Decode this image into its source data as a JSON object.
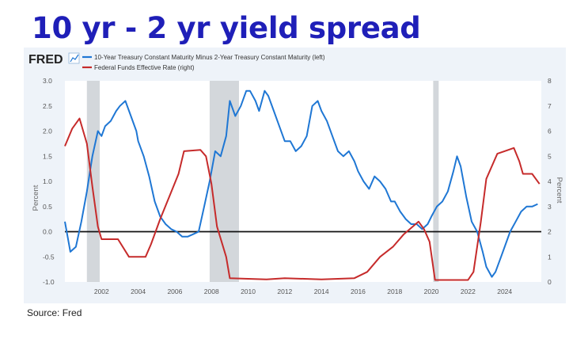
{
  "title": "10 yr - 2 yr yield spread",
  "source": "Source: Fred",
  "chart_data": {
    "type": "line",
    "brand": "FRED",
    "x_ticks": [
      2002,
      2004,
      2006,
      2008,
      2010,
      2012,
      2014,
      2016,
      2018,
      2020,
      2022,
      2024
    ],
    "xlim": [
      2000.0,
      2026.0
    ],
    "left_axis": {
      "label": "Percent",
      "ylim": [
        -1.0,
        3.0
      ],
      "ticks": [
        "-1.0",
        "-0.5",
        "0.0",
        "0.5",
        "1.0",
        "1.5",
        "2.0",
        "2.5",
        "3.0"
      ]
    },
    "right_axis": {
      "label": "Percent",
      "ylim": [
        0,
        8
      ],
      "ticks": [
        "0",
        "1",
        "2",
        "3",
        "4",
        "5",
        "6",
        "7",
        "8"
      ]
    },
    "recessions": [
      [
        2001.2,
        2001.9
      ],
      [
        2007.9,
        2009.5
      ],
      [
        2020.1,
        2020.4
      ]
    ],
    "zero_line": 0,
    "colors": {
      "spread": "#1f77d4",
      "fedfunds": "#c62b2b",
      "recession": "#d3d7db",
      "zero": "#111111"
    },
    "series": [
      {
        "name": "10-Year Treasury Constant Maturity Minus 2-Year Treasury Constant Maturity (left)",
        "axis": "left",
        "x": [
          2000.0,
          2000.3,
          2000.6,
          2000.9,
          2001.2,
          2001.5,
          2001.8,
          2002.0,
          2002.2,
          2002.5,
          2002.8,
          2003.0,
          2003.3,
          2003.6,
          2003.9,
          2004.0,
          2004.3,
          2004.6,
          2004.9,
          2005.2,
          2005.5,
          2005.8,
          2006.1,
          2006.4,
          2006.7,
          2007.0,
          2007.3,
          2007.6,
          2007.9,
          2008.2,
          2008.5,
          2008.8,
          2009.0,
          2009.3,
          2009.6,
          2009.9,
          2010.1,
          2010.4,
          2010.6,
          2010.9,
          2011.1,
          2011.4,
          2011.7,
          2012.0,
          2012.3,
          2012.6,
          2012.9,
          2013.2,
          2013.5,
          2013.8,
          2014.0,
          2014.3,
          2014.6,
          2014.9,
          2015.2,
          2015.5,
          2015.8,
          2016.0,
          2016.3,
          2016.6,
          2016.9,
          2017.2,
          2017.5,
          2017.8,
          2018.0,
          2018.3,
          2018.6,
          2018.9,
          2019.2,
          2019.5,
          2019.8,
          2020.0,
          2020.3,
          2020.6,
          2020.9,
          2021.2,
          2021.4,
          2021.6,
          2021.9,
          2022.2,
          2022.5,
          2022.8,
          2023.0,
          2023.3,
          2023.5,
          2023.8,
          2024.0,
          2024.3,
          2024.6,
          2024.9,
          2025.2,
          2025.5,
          2025.8
        ],
        "y": [
          0.2,
          -0.4,
          -0.3,
          0.2,
          0.8,
          1.5,
          2.0,
          1.9,
          2.1,
          2.2,
          2.4,
          2.5,
          2.6,
          2.3,
          2.0,
          1.8,
          1.5,
          1.1,
          0.6,
          0.3,
          0.15,
          0.05,
          0.0,
          -0.1,
          -0.1,
          -0.05,
          0.0,
          0.5,
          1.0,
          1.6,
          1.5,
          1.9,
          2.6,
          2.3,
          2.5,
          2.8,
          2.8,
          2.6,
          2.4,
          2.8,
          2.7,
          2.4,
          2.1,
          1.8,
          1.8,
          1.6,
          1.7,
          1.9,
          2.5,
          2.6,
          2.4,
          2.2,
          1.9,
          1.6,
          1.5,
          1.6,
          1.4,
          1.2,
          1.0,
          0.85,
          1.1,
          1.0,
          0.85,
          0.6,
          0.6,
          0.4,
          0.25,
          0.15,
          0.15,
          0.05,
          0.15,
          0.3,
          0.5,
          0.6,
          0.8,
          1.2,
          1.5,
          1.3,
          0.7,
          0.2,
          0.0,
          -0.4,
          -0.7,
          -0.9,
          -0.8,
          -0.5,
          -0.3,
          0.0,
          0.2,
          0.4,
          0.5,
          0.5,
          0.55
        ]
      },
      {
        "name": "Federal Funds Effective Rate (right)",
        "axis": "right",
        "x": [
          2000.0,
          2000.4,
          2000.8,
          2001.2,
          2001.5,
          2001.8,
          2002.0,
          2002.9,
          2003.5,
          2004.4,
          2004.7,
          2005.2,
          2005.7,
          2006.2,
          2006.5,
          2007.4,
          2007.7,
          2008.0,
          2008.3,
          2008.8,
          2009.0,
          2011.0,
          2012.0,
          2014.0,
          2015.8,
          2016.5,
          2017.2,
          2017.9,
          2018.5,
          2019.3,
          2019.6,
          2019.9,
          2020.2,
          2020.5,
          2021.0,
          2022.0,
          2022.3,
          2022.7,
          2023.0,
          2023.6,
          2024.5,
          2024.8,
          2025.0,
          2025.5,
          2025.9
        ],
        "y": [
          5.4,
          6.1,
          6.5,
          5.5,
          3.8,
          2.2,
          1.7,
          1.7,
          1.0,
          1.0,
          1.5,
          2.5,
          3.4,
          4.3,
          5.2,
          5.25,
          5.0,
          3.9,
          2.2,
          1.0,
          0.15,
          0.1,
          0.15,
          0.1,
          0.15,
          0.4,
          1.0,
          1.4,
          1.9,
          2.4,
          2.1,
          1.6,
          0.08,
          0.08,
          0.08,
          0.08,
          0.4,
          2.4,
          4.1,
          5.1,
          5.33,
          4.8,
          4.3,
          4.3,
          3.9
        ]
      }
    ]
  }
}
